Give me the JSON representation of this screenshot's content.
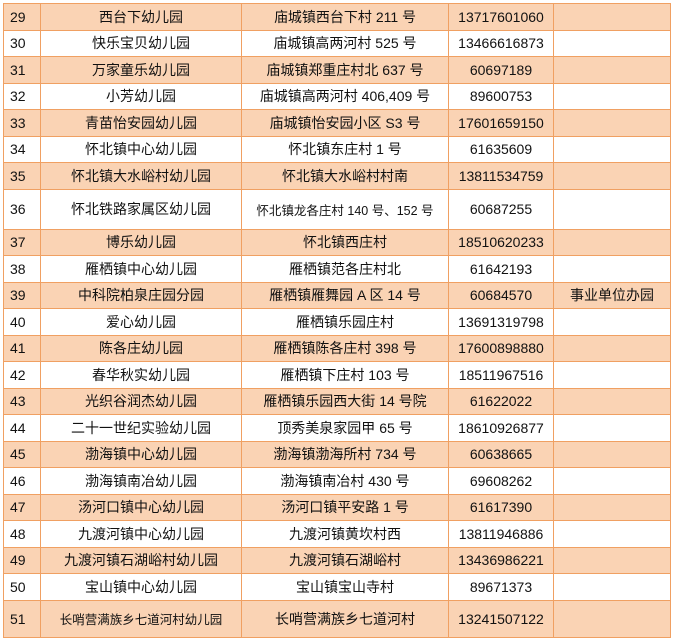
{
  "colors": {
    "shade": "#fad3b4",
    "border": "#f0a062"
  },
  "rows": [
    {
      "no": "29",
      "name": "西台下幼儿园",
      "address": "庙城镇西台下村 211 号",
      "phone": "13717601060",
      "note": ""
    },
    {
      "no": "30",
      "name": "快乐宝贝幼儿园",
      "address": "庙城镇高两河村 525 号",
      "phone": "13466616873",
      "note": ""
    },
    {
      "no": "31",
      "name": "万家童乐幼儿园",
      "address": "庙城镇郑重庄村北 637 号",
      "phone": "60697189",
      "note": ""
    },
    {
      "no": "32",
      "name": "小芳幼儿园",
      "address": "庙城镇高两河村 406,409 号",
      "phone": "89600753",
      "note": ""
    },
    {
      "no": "33",
      "name": "青苗怡安园幼儿园",
      "address": "庙城镇怡安园小区 S3 号",
      "phone": "17601659150",
      "note": ""
    },
    {
      "no": "34",
      "name": "怀北镇中心幼儿园",
      "address": "怀北镇东庄村 1 号",
      "phone": "61635609",
      "note": ""
    },
    {
      "no": "35",
      "name": "怀北镇大水峪村幼儿园",
      "address": "怀北镇大水峪村村南",
      "phone": "13811534759",
      "note": ""
    },
    {
      "no": "36",
      "name": "怀北铁路家属区幼儿园",
      "address": "怀北镇龙各庄村 140 号、152 号",
      "phone": "60687255",
      "note": ""
    },
    {
      "no": "37",
      "name": "博乐幼儿园",
      "address": "怀北镇西庄村",
      "phone": "18510620233",
      "note": ""
    },
    {
      "no": "38",
      "name": "雁栖镇中心幼儿园",
      "address": "雁栖镇范各庄村北",
      "phone": "61642193",
      "note": ""
    },
    {
      "no": "39",
      "name": "中科院柏泉庄园分园",
      "address": "雁栖镇雁舞园 A 区 14 号",
      "phone": "60684570",
      "note": "事业单位办园"
    },
    {
      "no": "40",
      "name": "爱心幼儿园",
      "address": "雁栖镇乐园庄村",
      "phone": "13691319798",
      "note": ""
    },
    {
      "no": "41",
      "name": "陈各庄幼儿园",
      "address": "雁栖镇陈各庄村 398 号",
      "phone": "17600898880",
      "note": ""
    },
    {
      "no": "42",
      "name": "春华秋实幼儿园",
      "address": "雁栖镇下庄村 103 号",
      "phone": "18511967516",
      "note": ""
    },
    {
      "no": "43",
      "name": "光织谷润杰幼儿园",
      "address": "雁栖镇乐园西大街 14 号院",
      "phone": "61622022",
      "note": ""
    },
    {
      "no": "44",
      "name": "二十一世纪实验幼儿园",
      "address": "顶秀美泉家园甲 65 号",
      "phone": "18610926877",
      "note": ""
    },
    {
      "no": "45",
      "name": "渤海镇中心幼儿园",
      "address": "渤海镇渤海所村 734 号",
      "phone": "60638665",
      "note": ""
    },
    {
      "no": "46",
      "name": "渤海镇南冶幼儿园",
      "address": "渤海镇南冶村 430 号",
      "phone": "69608262",
      "note": ""
    },
    {
      "no": "47",
      "name": "汤河口镇中心幼儿园",
      "address": "汤河口镇平安路 1 号",
      "phone": "61617390",
      "note": ""
    },
    {
      "no": "48",
      "name": "九渡河镇中心幼儿园",
      "address": "九渡河镇黄坎村西",
      "phone": "13811946886",
      "note": ""
    },
    {
      "no": "49",
      "name": "九渡河镇石湖峪村幼儿园",
      "address": "九渡河镇石湖峪村",
      "phone": "13436986221",
      "note": ""
    },
    {
      "no": "50",
      "name": "宝山镇中心幼儿园",
      "address": "宝山镇宝山寺村",
      "phone": "89671373",
      "note": ""
    },
    {
      "no": "51",
      "name": "长哨营满族乡七道河村幼儿园",
      "address": "长哨营满族乡七道河村",
      "phone": "13241507122",
      "note": ""
    }
  ]
}
